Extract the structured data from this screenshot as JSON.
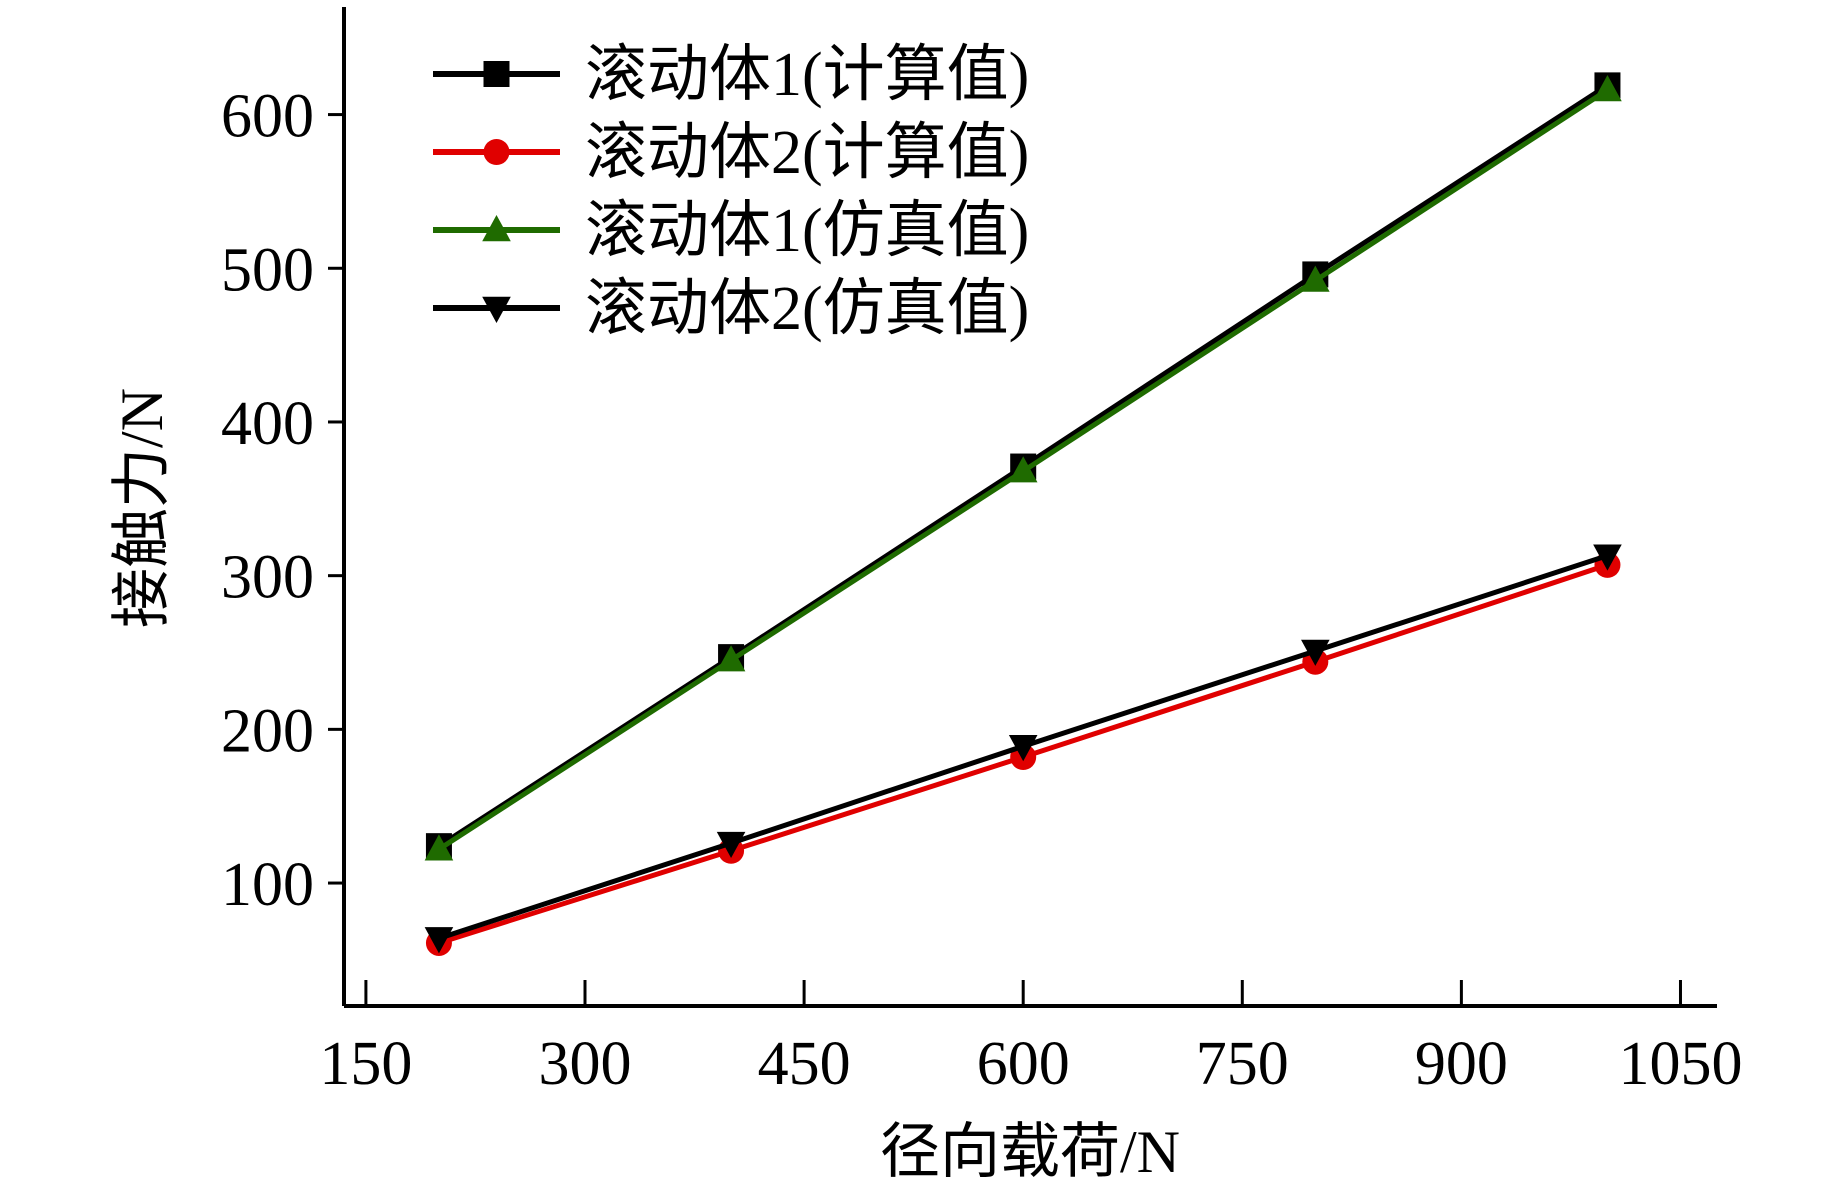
{
  "chart_data": {
    "type": "line",
    "xlabel": "径向载荷/N",
    "ylabel": "接触力/N",
    "xlim": [
      135,
      1075
    ],
    "ylim": [
      20,
      670
    ],
    "xticks": [
      150,
      300,
      450,
      600,
      750,
      900,
      1050
    ],
    "yticks": [
      100,
      200,
      300,
      400,
      500,
      600
    ],
    "x": [
      200,
      400,
      600,
      800,
      1000
    ],
    "grid": false,
    "legend_position": "top-left",
    "series": [
      {
        "name": "滚动体1(计算值)",
        "color": "#000000",
        "marker": "square",
        "values": [
          124,
          247,
          371,
          496,
          619
        ]
      },
      {
        "name": "滚动体2(计算值)",
        "color": "#e00000",
        "marker": "circle",
        "values": [
          61,
          121,
          182,
          244,
          307
        ]
      },
      {
        "name": "滚动体1(仿真值)",
        "color": "#1f6b00",
        "marker": "triangle-up",
        "values": [
          122,
          245,
          368,
          492,
          616
        ]
      },
      {
        "name": "滚动体2(仿真值)",
        "color": "#000000",
        "marker": "triangle-down",
        "values": [
          64,
          126,
          189,
          251,
          313
        ]
      }
    ]
  }
}
